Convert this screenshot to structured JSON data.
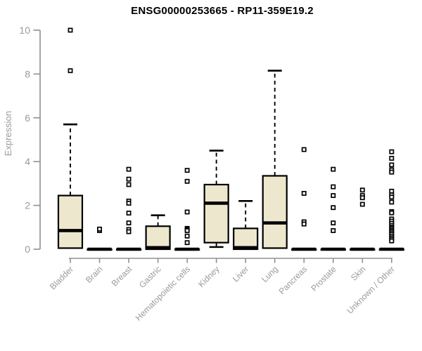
{
  "chart_data": {
    "type": "boxplot",
    "title": "ENSG00000253665 - RP11-359E19.2",
    "ylabel": "Expression",
    "xlabel": "",
    "ylim": [
      0,
      10
    ],
    "yticks": [
      0,
      2,
      4,
      6,
      8,
      10
    ],
    "grid": false,
    "legend": "none",
    "categories": [
      "Bladder",
      "Brain",
      "Breast",
      "Gastric",
      "Hematopoietic cells",
      "Kidney",
      "Liver",
      "Lung",
      "Pancreas",
      "Prostate",
      "Skin",
      "Unknown / Other"
    ],
    "series": [
      {
        "category": "Bladder",
        "q1": 0.05,
        "median": 0.85,
        "q3": 2.45,
        "whisker_low": 0.05,
        "whisker_high": 5.7,
        "outliers": [
          8.15,
          10.0
        ]
      },
      {
        "category": "Brain",
        "q1": 0,
        "median": 0,
        "q3": 0,
        "whisker_low": 0,
        "whisker_high": 0,
        "outliers": [
          0.85,
          0.92
        ]
      },
      {
        "category": "Breast",
        "q1": 0,
        "median": 0,
        "q3": 0,
        "whisker_low": 0,
        "whisker_high": 0,
        "outliers": [
          3.65,
          3.2,
          2.95,
          2.2,
          2.1,
          1.65,
          1.2,
          0.9,
          0.8
        ]
      },
      {
        "category": "Gastric",
        "q1": 0,
        "median": 0.07,
        "q3": 1.05,
        "whisker_low": 0,
        "whisker_high": 1.55,
        "outliers": []
      },
      {
        "category": "Hematopoietic cells",
        "q1": 0,
        "median": 0,
        "q3": 0,
        "whisker_low": 0,
        "whisker_high": 0,
        "outliers": [
          3.6,
          3.1,
          1.7,
          0.95,
          0.9,
          0.85,
          0.6,
          0.3
        ]
      },
      {
        "category": "Kidney",
        "q1": 0.3,
        "median": 2.1,
        "q3": 2.95,
        "whisker_low": 0.1,
        "whisker_high": 4.5,
        "outliers": []
      },
      {
        "category": "Liver",
        "q1": 0,
        "median": 0.07,
        "q3": 0.95,
        "whisker_low": 0,
        "whisker_high": 2.2,
        "outliers": []
      },
      {
        "category": "Lung",
        "q1": 0.05,
        "median": 1.2,
        "q3": 3.35,
        "whisker_low": 0.05,
        "whisker_high": 8.15,
        "outliers": []
      },
      {
        "category": "Pancreas",
        "q1": 0,
        "median": 0,
        "q3": 0,
        "whisker_low": 0,
        "whisker_high": 0,
        "outliers": [
          4.55,
          2.55,
          1.25,
          1.15
        ]
      },
      {
        "category": "Prostate",
        "q1": 0,
        "median": 0,
        "q3": 0,
        "whisker_low": 0,
        "whisker_high": 0,
        "outliers": [
          3.65,
          2.85,
          2.45,
          1.9,
          1.2,
          0.85
        ]
      },
      {
        "category": "Skin",
        "q1": 0,
        "median": 0,
        "q3": 0,
        "whisker_low": 0,
        "whisker_high": 0,
        "outliers": [
          2.7,
          2.45,
          2.35,
          2.05
        ]
      },
      {
        "category": "Unknown / Other",
        "q1": 0,
        "median": 0,
        "q3": 0,
        "whisker_low": 0,
        "whisker_high": 0,
        "outliers": [
          4.45,
          4.15,
          3.85,
          3.62,
          3.52,
          2.65,
          2.48,
          2.38,
          2.15,
          1.72,
          1.66,
          1.38,
          1.28,
          1.18,
          1.08,
          1.0,
          0.95,
          0.88,
          0.82,
          0.75,
          0.68,
          0.6,
          0.52,
          0.45,
          0.38
        ]
      }
    ],
    "colors": {
      "box_fill": "#EDE7CE",
      "box_stroke": "#000000",
      "median": "#000000",
      "whisker": "#000000",
      "outlier_stroke": "#000000",
      "axis": "#909090",
      "tick_label": "#9A9A9A",
      "title": "#000000",
      "background": "#FFFFFF"
    }
  }
}
